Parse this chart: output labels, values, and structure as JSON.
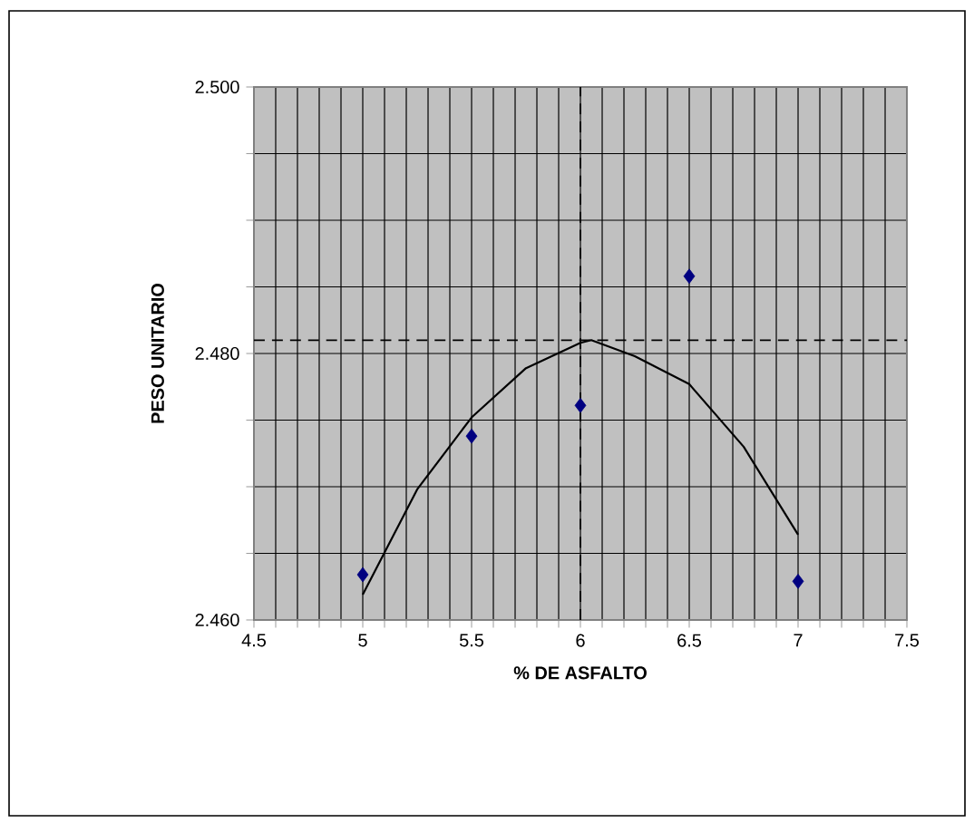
{
  "chart_data": {
    "type": "scatter",
    "xlabel": "% DE ASFALTO",
    "ylabel": "PESO UNITARIO",
    "xlim": [
      4.5,
      7.5
    ],
    "xticks": [
      4.5,
      {
        "value": 4.6,
        "label": null
      },
      {
        "value": 4.7,
        "label": null
      },
      {
        "value": 4.8,
        "label": null
      },
      {
        "value": 4.9,
        "label": null
      },
      5,
      {
        "value": 5.1,
        "label": null
      },
      {
        "value": 5.2,
        "label": null
      },
      {
        "value": 5.3,
        "label": null
      },
      {
        "value": 5.4,
        "label": null
      },
      5.5,
      {
        "value": 5.6,
        "label": null
      },
      {
        "value": 5.7,
        "label": null
      },
      {
        "value": 5.8,
        "label": null
      },
      {
        "value": 5.9,
        "label": null
      },
      6,
      {
        "value": 6.1,
        "label": null
      },
      {
        "value": 6.2,
        "label": null
      },
      {
        "value": 6.3,
        "label": null
      },
      {
        "value": 6.4,
        "label": null
      },
      6.5,
      {
        "value": 6.6,
        "label": null
      },
      {
        "value": 6.7,
        "label": null
      },
      {
        "value": 6.8,
        "label": null
      },
      {
        "value": 6.9,
        "label": null
      },
      7,
      {
        "value": 7.1,
        "label": null
      },
      {
        "value": 7.2,
        "label": null
      },
      {
        "value": 7.3,
        "label": null
      },
      {
        "value": 7.4,
        "label": null
      },
      7.5
    ],
    "ylim": [
      2.46,
      2.5
    ],
    "yticks": [
      {
        "value": 2.46,
        "label": "2.460"
      },
      {
        "value": 2.465,
        "label": null
      },
      {
        "value": 2.47,
        "label": null
      },
      {
        "value": 2.475,
        "label": null
      },
      {
        "value": 2.48,
        "label": "2.480"
      },
      {
        "value": 2.485,
        "label": null
      },
      {
        "value": 2.49,
        "label": null
      },
      {
        "value": 2.495,
        "label": null
      },
      {
        "value": 2.5,
        "label": "2.500"
      }
    ],
    "grid": true,
    "series": [
      {
        "color": "#000080",
        "marker": "diamond",
        "x": [
          5,
          5.5,
          6,
          6.5,
          7
        ],
        "values": [
          2.4634,
          2.4738,
          2.4761,
          2.4858,
          2.4629
        ]
      },
      {
        "type": "line",
        "color": "#000000",
        "marker": "none",
        "line_style": "solid",
        "x": [
          5,
          5.25,
          5.5,
          5.75,
          6,
          6.05,
          6.25,
          6.5,
          6.75,
          7
        ],
        "values": [
          2.4619,
          2.4698,
          2.4752,
          2.4789,
          2.4808,
          2.481,
          2.4798,
          2.4777,
          2.473,
          2.4664
        ]
      }
    ],
    "ref_lines": [
      {
        "axis": "y",
        "value": 2.481,
        "color": "#000000",
        "line_style": "dashed"
      },
      {
        "axis": "x",
        "value": 6,
        "color": "#000000",
        "line_style": "dashed"
      }
    ]
  }
}
